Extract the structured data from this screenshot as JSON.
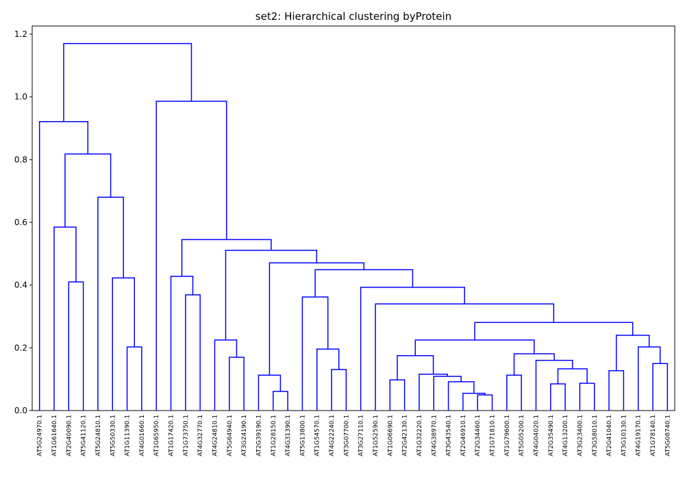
{
  "chart_data": {
    "type": "dendrogram",
    "title": "set2: Hierarchical clustering byProtein",
    "color": "#0000ff",
    "ylim": [
      0,
      1.226
    ],
    "yticks": [
      {
        "value": 0,
        "label": "0.0"
      },
      0.2,
      0.4,
      0.6,
      0.8,
      {
        "value": 1,
        "label": "1.0"
      },
      1.2
    ],
    "tree": {
      "height": 1.17,
      "children": [
        {
          "height": 0.921,
          "children": [
            {
              "label": "AT5G24970.1"
            },
            {
              "height": 0.818,
              "children": [
                {
                  "height": 0.585,
                  "children": [
                    {
                      "label": "AT1G61640.1"
                    },
                    {
                      "height": 0.41,
                      "children": [
                        {
                          "label": "AT2G40090.1"
                        },
                        {
                          "label": "AT5G41120.1"
                        }
                      ]
                    }
                  ]
                },
                {
                  "height": 0.68,
                  "children": [
                    {
                      "label": "AT5G24810.1"
                    },
                    {
                      "height": 0.423,
                      "children": [
                        {
                          "label": "AT5G50330.1"
                        },
                        {
                          "height": 0.203,
                          "children": [
                            {
                              "label": "AT1G11390.1"
                            },
                            {
                              "label": "AT4G01660.1"
                            }
                          ]
                        }
                      ]
                    }
                  ]
                }
              ]
            }
          ]
        },
        {
          "height": 0.986,
          "children": [
            {
              "label": "AT1G65950.1"
            },
            {
              "height": 0.545,
              "children": [
                {
                  "height": 0.428,
                  "children": [
                    {
                      "label": "AT1G17420.1"
                    },
                    {
                      "height": 0.369,
                      "children": [
                        {
                          "label": "AT1G73750.1"
                        },
                        {
                          "label": "AT4G32770.1"
                        }
                      ]
                    }
                  ]
                },
                {
                  "height": 0.511,
                  "children": [
                    {
                      "height": 0.225,
                      "children": [
                        {
                          "label": "AT4G24810.1"
                        },
                        {
                          "height": 0.17,
                          "children": [
                            {
                              "label": "AT5G64940.1"
                            },
                            {
                              "label": "AT3G24190.1"
                            }
                          ]
                        }
                      ]
                    },
                    {
                      "height": 0.471,
                      "children": [
                        {
                          "height": 0.113,
                          "children": [
                            {
                              "label": "AT2G39190.1"
                            },
                            {
                              "height": 0.061,
                              "children": [
                                {
                                  "label": "AT1G28150.1"
                                },
                                {
                                  "label": "AT4G31390.1"
                                }
                              ]
                            }
                          ]
                        },
                        {
                          "height": 0.449,
                          "children": [
                            {
                              "height": 0.362,
                              "children": [
                                {
                                  "label": "AT5G13800.1"
                                },
                                {
                                  "height": 0.196,
                                  "children": [
                                    {
                                      "label": "AT1G54570.1"
                                    },
                                    {
                                      "height": 0.131,
                                      "children": [
                                        {
                                          "label": "AT4G22240.1"
                                        },
                                        {
                                          "label": "AT3G07700.1"
                                        }
                                      ]
                                    }
                                  ]
                                }
                              ]
                            },
                            {
                              "height": 0.393,
                              "children": [
                                {
                                  "label": "AT3G27110.1"
                                },
                                {
                                  "height": 0.34,
                                  "children": [
                                    {
                                      "label": "AT1G52590.1"
                                    },
                                    {
                                      "height": 0.281,
                                      "children": [
                                        {
                                          "height": 0.225,
                                          "children": [
                                            {
                                              "height": 0.175,
                                              "children": [
                                                {
                                                  "height": 0.098,
                                                  "children": [
                                                    {
                                                      "label": "AT1G06690.1"
                                                    },
                                                    {
                                                      "label": "AT2G42130.1"
                                                    }
                                                  ]
                                                },
                                                {
                                                  "height": 0.116,
                                                  "children": [
                                                    {
                                                      "label": "AT1G32220.1"
                                                    },
                                                    {
                                                      "height": 0.109,
                                                      "children": [
                                                        {
                                                          "label": "AT4G38970.1"
                                                        },
                                                        {
                                                          "height": 0.092,
                                                          "children": [
                                                            {
                                                              "label": "AT3G43540.1"
                                                            },
                                                            {
                                                              "height": 0.055,
                                                              "children": [
                                                                {
                                                                  "label": "AT2G46910.1"
                                                                },
                                                                {
                                                                  "height": 0.05,
                                                                  "children": [
                                                                    {
                                                                      "label": "AT2G34460.1"
                                                                    },
                                                                    {
                                                                      "label": "AT1G71810.1"
                                                                    }
                                                                  ]
                                                                }
                                                              ]
                                                            }
                                                          ]
                                                        }
                                                      ]
                                                    }
                                                  ]
                                                }
                                              ]
                                            },
                                            {
                                              "height": 0.181,
                                              "children": [
                                                {
                                                  "height": 0.113,
                                                  "children": [
                                                    {
                                                      "label": "AT1G79600.1"
                                                    },
                                                    {
                                                      "label": "AT5G05200.1"
                                                    }
                                                  ]
                                                },
                                                {
                                                  "height": 0.16,
                                                  "children": [
                                                    {
                                                      "label": "AT4G04020.1"
                                                    },
                                                    {
                                                      "height": 0.133,
                                                      "children": [
                                                        {
                                                          "height": 0.085,
                                                          "children": [
                                                            {
                                                              "label": "AT2G35490.1"
                                                            },
                                                            {
                                                              "label": "AT4G13200.1"
                                                            }
                                                          ]
                                                        },
                                                        {
                                                          "height": 0.087,
                                                          "children": [
                                                            {
                                                              "label": "AT3G23400.1"
                                                            },
                                                            {
                                                              "label": "AT3G58010.1"
                                                            }
                                                          ]
                                                        }
                                                      ]
                                                    }
                                                  ]
                                                }
                                              ]
                                            }
                                          ]
                                        },
                                        {
                                          "height": 0.24,
                                          "children": [
                                            {
                                              "height": 0.127,
                                              "children": [
                                                {
                                                  "label": "AT2G41040.1"
                                                },
                                                {
                                                  "label": "AT3G10130.1"
                                                }
                                              ]
                                            },
                                            {
                                              "height": 0.203,
                                              "children": [
                                                {
                                                  "label": "AT4G19170.1"
                                                },
                                                {
                                                  "height": 0.15,
                                                  "children": [
                                                    {
                                                      "label": "AT1G78140.1"
                                                    },
                                                    {
                                                      "label": "AT5G08740.1"
                                                    }
                                                  ]
                                                }
                                              ]
                                            }
                                          ]
                                        }
                                      ]
                                    }
                                  ]
                                }
                              ]
                            }
                          ]
                        }
                      ]
                    }
                  ]
                }
              ]
            }
          ]
        }
      ]
    }
  }
}
